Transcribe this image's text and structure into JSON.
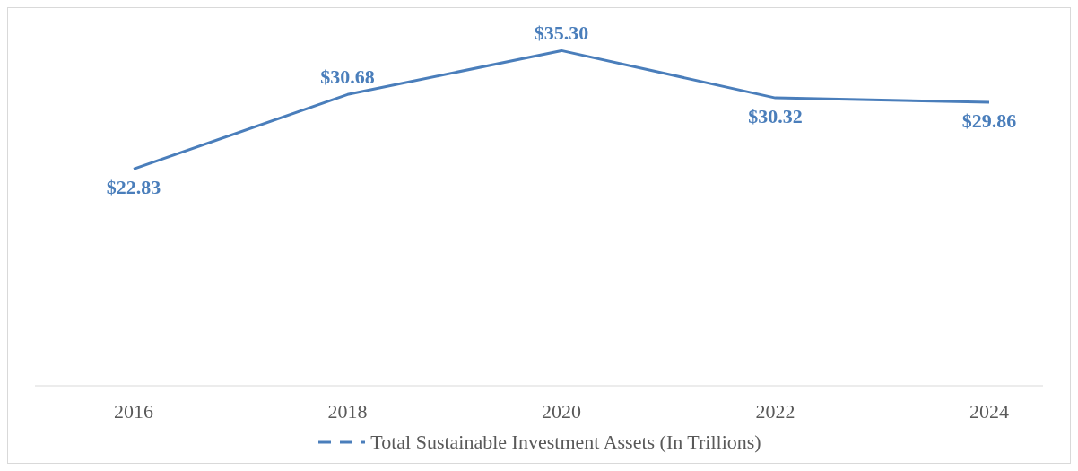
{
  "chart_data": {
    "type": "line",
    "categories": [
      "2016",
      "2018",
      "2020",
      "2022",
      "2024"
    ],
    "series": [
      {
        "name": "Total Sustainable Investment Assets (In Trillions)",
        "color": "#4a7ebb",
        "values": [
          22.83,
          30.68,
          35.3,
          30.32,
          29.86
        ],
        "value_labels": [
          "$22.83",
          "$30.68",
          "$35.30",
          "$30.32",
          "$29.86"
        ]
      }
    ],
    "legend": "bottom",
    "marker": "none",
    "line_style": "solid"
  }
}
